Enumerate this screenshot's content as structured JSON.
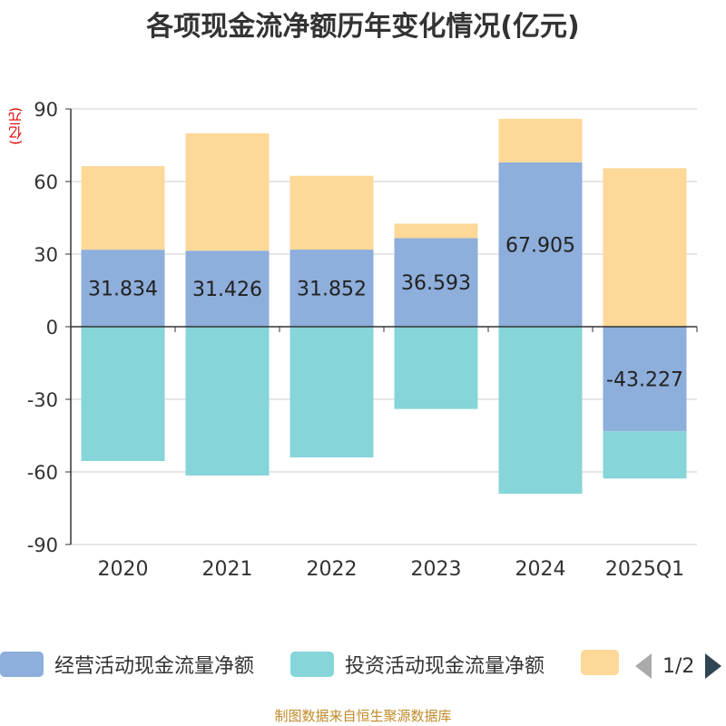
{
  "title": "各项现金流净额历年变化情况(亿元)",
  "unit_label": "(亿元)",
  "source": "制图数据来自恒生聚源数据库",
  "legend": {
    "items": [
      {
        "label": "经营活动现金流量净额",
        "color": "#8eaedb"
      },
      {
        "label": "投资活动现金流量净额",
        "color": "#86d5d8"
      },
      {
        "label": "",
        "color": "#fed898"
      }
    ],
    "page": "1/2"
  },
  "chart_data": {
    "type": "bar",
    "stacked": true,
    "categories": [
      "2020",
      "2021",
      "2022",
      "2023",
      "2024",
      "2025Q1"
    ],
    "ylim": [
      -90,
      90
    ],
    "yticks": [
      90,
      60,
      30,
      0,
      -30,
      -60,
      -90
    ],
    "grid": true,
    "legend_position": "bottom",
    "series": [
      {
        "name": "经营活动现金流量净额",
        "color": "#8eaedb",
        "values": [
          31.834,
          31.426,
          31.852,
          36.593,
          67.905,
          -43.227
        ],
        "labels": [
          "31.834",
          "31.426",
          "31.852",
          "36.593",
          "67.905",
          "-43.227"
        ]
      },
      {
        "name": "投资活动现金流量净额",
        "color": "#86d5d8",
        "values": [
          -55.5,
          -61.5,
          -54.0,
          -34.0,
          -69.0,
          -19.5
        ]
      },
      {
        "color": "#fed898",
        "values": [
          34.5,
          48.5,
          30.5,
          6.0,
          18.0,
          65.5
        ]
      }
    ]
  }
}
